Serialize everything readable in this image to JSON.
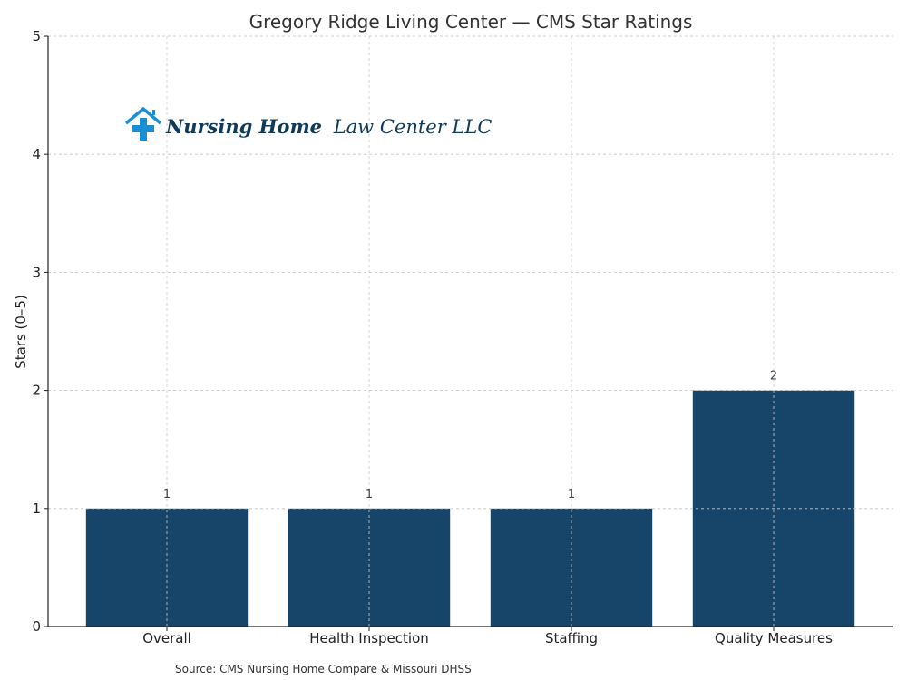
{
  "chart_data": {
    "type": "bar",
    "title": "Gregory Ridge Living Center — CMS Star Ratings",
    "xlabel": "",
    "ylabel": "Stars (0–5)",
    "categories": [
      "Overall",
      "Health Inspection",
      "Staffing",
      "Quality Measures"
    ],
    "values": [
      1,
      1,
      1,
      2
    ],
    "data_labels": [
      "1",
      "1",
      "1",
      "2"
    ],
    "ylim": [
      0,
      5
    ],
    "yticks": [
      "0",
      "1",
      "2",
      "3",
      "4",
      "5"
    ],
    "grid": true,
    "bar_color": "#17456a",
    "source": "Source: CMS Nursing Home Compare & Missouri DHSS"
  },
  "logo": {
    "text_bold": "Nursing Home",
    "text_regular": "Law Center LLC",
    "icon": "house-medical-cross-icon",
    "icon_color": "#1a8fd6",
    "text_color": "#0f3a5a"
  }
}
